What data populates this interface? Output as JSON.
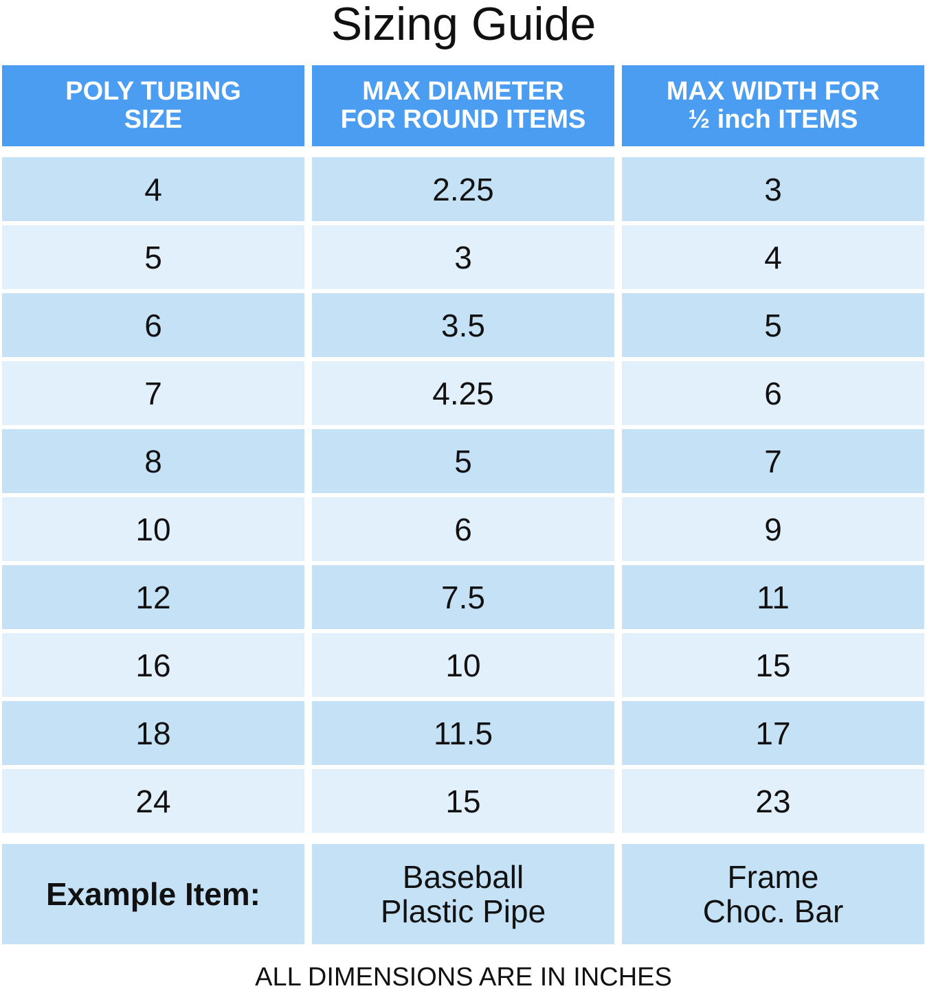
{
  "title": "Sizing Guide",
  "colors": {
    "header_bg": "#4a9df0",
    "row_dark": "#c5e1f6",
    "row_light": "#e2f0fb",
    "header_text": "#ffffff"
  },
  "headers": [
    "POLY TUBING\nSIZE",
    "MAX DIAMETER\nFOR ROUND ITEMS",
    "MAX WIDTH FOR\n½ inch ITEMS"
  ],
  "rows": [
    [
      "4",
      "2.25",
      "3"
    ],
    [
      "5",
      "3",
      "4"
    ],
    [
      "6",
      "3.5",
      "5"
    ],
    [
      "7",
      "4.25",
      "6"
    ],
    [
      "8",
      "5",
      "7"
    ],
    [
      "10",
      "6",
      "9"
    ],
    [
      "12",
      "7.5",
      "11"
    ],
    [
      "16",
      "10",
      "15"
    ],
    [
      "18",
      "11.5",
      "17"
    ],
    [
      "24",
      "15",
      "23"
    ]
  ],
  "example": [
    "Example Item:",
    "Baseball\nPlastic Pipe",
    "Frame\nChoc. Bar"
  ],
  "footer": "ALL DIMENSIONS ARE IN INCHES"
}
